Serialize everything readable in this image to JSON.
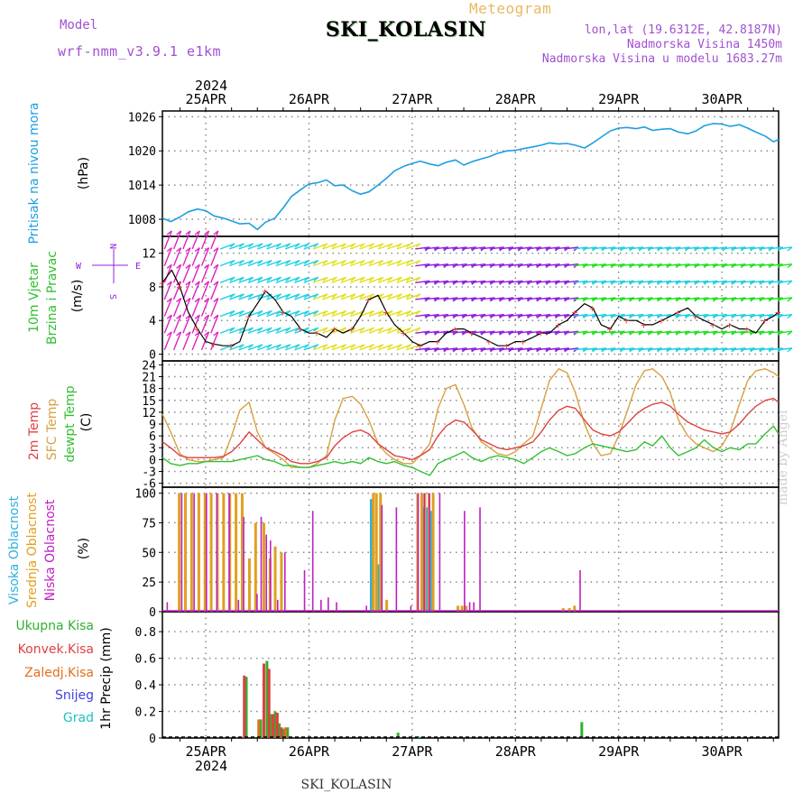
{
  "header": {
    "model_label": "Model",
    "model_value": "wrf-nmm_v3.9.1 e1km",
    "title": "SKI_KOLASIN",
    "meteogram_label": "Meteogram",
    "lonlat": "lon,lat (19.6312E, 42.8187N)",
    "elevation": "Nadmorska Visina 1450m",
    "model_elevation": "Nadmorska Visina u modelu 1683.27m"
  },
  "footer": {
    "title": "SKI_KOLASIN",
    "signature": "made by Angel"
  },
  "time_axis": {
    "labels": [
      "25APR",
      "26APR",
      "27APR",
      "28APR",
      "29APR",
      "30APR"
    ],
    "year": "2024"
  },
  "wind_compass": {
    "n": "N",
    "w": "W",
    "e": "E",
    "s": "S"
  },
  "colors": {
    "pressure": "#1ba0e0",
    "t2m": "#e04040",
    "sfc": "#d8a040",
    "dew": "#30c030",
    "high_cloud": "#30b0e0",
    "mid_cloud": "#e0a020",
    "low_cloud": "#c020c0",
    "total_precip": "#30b030",
    "conv_precip": "#e04040",
    "frz_precip": "#e07020",
    "snow": "#4040e0",
    "graupel": "#20c0c0",
    "wind_purple": "#9020e0",
    "wind_cyan": "#20d0e0",
    "wind_yellow": "#e0e020",
    "wind_green": "#20e020",
    "wind_magenta": "#e020c0",
    "axis": "#000000",
    "grid": "#888888"
  },
  "chart_data": [
    {
      "type": "line",
      "panel": "pressure",
      "ylabel": [
        "Pritisak na nivou mora",
        "(hPa)"
      ],
      "yticks": [
        1008,
        1014,
        1020,
        1026
      ],
      "ylim": [
        1005,
        1027
      ],
      "x_range_days": [
        24.58,
        30.55
      ],
      "grid": true,
      "series": [
        {
          "x": [
            24.58,
            24.66,
            24.75,
            24.83,
            24.92,
            25.0,
            25.08,
            25.17,
            25.25,
            25.33,
            25.42,
            25.5,
            25.58,
            25.67,
            25.75,
            25.83,
            25.92,
            26.0,
            26.08,
            26.17,
            26.25,
            26.33,
            26.42,
            26.5,
            26.58,
            26.67,
            26.75,
            26.83,
            26.92,
            27.0,
            27.08,
            27.17,
            27.25,
            27.33,
            27.42,
            27.5,
            27.58,
            27.67,
            27.75,
            27.83,
            27.92,
            28.0,
            28.08,
            28.17,
            28.25,
            28.33,
            28.42,
            28.5,
            28.58,
            28.67,
            28.75,
            28.83,
            28.92,
            29.0,
            29.08,
            29.17,
            29.25,
            29.33,
            29.42,
            29.5,
            29.58,
            29.67,
            29.75,
            29.83,
            29.92,
            30.0,
            30.08,
            30.17,
            30.25,
            30.33,
            30.42,
            30.5,
            30.55
          ],
          "values": [
            1008.2,
            1007.6,
            1008.4,
            1009.3,
            1009.8,
            1009.5,
            1008.6,
            1008.2,
            1007.7,
            1007.2,
            1007.3,
            1006.2,
            1007.5,
            1008.2,
            1010.0,
            1012.0,
            1013.2,
            1014.2,
            1014.4,
            1014.9,
            1013.9,
            1014.0,
            1013.0,
            1012.4,
            1012.8,
            1014.0,
            1015.2,
            1016.5,
            1017.3,
            1017.8,
            1018.2,
            1017.7,
            1017.4,
            1018.0,
            1018.4,
            1017.5,
            1018.1,
            1018.6,
            1019.0,
            1019.6,
            1020.0,
            1020.1,
            1020.4,
            1020.7,
            1021.0,
            1021.4,
            1021.2,
            1021.3,
            1021.0,
            1020.5,
            1021.4,
            1022.4,
            1023.5,
            1024.0,
            1024.1,
            1023.9,
            1024.2,
            1023.6,
            1023.8,
            1023.9,
            1023.3,
            1023.0,
            1023.5,
            1024.4,
            1024.8,
            1024.7,
            1024.3,
            1024.6,
            1024.0,
            1023.3,
            1022.6,
            1021.6,
            1022.0
          ],
          "name": "Pritisak na nivou mora"
        }
      ]
    },
    {
      "type": "line",
      "panel": "wind",
      "ylabel": [
        "10m Vjetar",
        "Brzina i Pravac",
        "(m/s)"
      ],
      "yticks": [
        0,
        4,
        8,
        12
      ],
      "ylim": [
        -0.8,
        14
      ],
      "grid": true,
      "series": [
        {
          "x": [
            24.58,
            24.67,
            24.75,
            24.83,
            24.92,
            25.0,
            25.08,
            25.17,
            25.25,
            25.33,
            25.42,
            25.5,
            25.58,
            25.67,
            25.75,
            25.83,
            25.92,
            26.0,
            26.08,
            26.17,
            26.25,
            26.33,
            26.42,
            26.5,
            26.58,
            26.67,
            26.75,
            26.83,
            26.92,
            27.0,
            27.08,
            27.17,
            27.25,
            27.33,
            27.42,
            27.5,
            27.58,
            27.67,
            27.75,
            27.83,
            27.92,
            28.0,
            28.08,
            28.17,
            28.25,
            28.33,
            28.42,
            28.5,
            28.58,
            28.67,
            28.75,
            28.83,
            28.92,
            29.0,
            29.08,
            29.17,
            29.25,
            29.33,
            29.42,
            29.5,
            29.58,
            29.67,
            29.75,
            29.83,
            29.92,
            30.0,
            30.08,
            30.17,
            30.25,
            30.33,
            30.42,
            30.5,
            30.55
          ],
          "values": [
            8.5,
            10.0,
            8.0,
            5.0,
            3.0,
            1.5,
            1.2,
            1.0,
            1.0,
            1.5,
            4.5,
            6.0,
            7.5,
            6.5,
            5.0,
            4.5,
            3.0,
            2.5,
            2.5,
            2.0,
            3.0,
            2.5,
            3.0,
            4.5,
            6.5,
            7.0,
            5.0,
            3.5,
            2.5,
            1.5,
            1.0,
            1.5,
            1.5,
            2.5,
            3.0,
            3.0,
            2.5,
            2.0,
            1.5,
            1.0,
            1.0,
            1.5,
            1.5,
            2.0,
            2.5,
            2.5,
            3.5,
            4.0,
            5.0,
            6.0,
            5.5,
            3.5,
            3.0,
            4.5,
            4.0,
            4.0,
            3.5,
            3.5,
            4.0,
            4.5,
            5.0,
            5.5,
            4.5,
            4.0,
            3.5,
            3.0,
            3.5,
            3.0,
            3.0,
            2.5,
            4.0,
            4.5,
            5.0
          ],
          "name": "10m Vjetar Brzina"
        }
      ]
    },
    {
      "type": "line",
      "panel": "temperature",
      "ylabel": [
        "2m Temp",
        "SFC Temp",
        "dewpt Temp",
        "(C)"
      ],
      "yticks": [
        -6,
        -3,
        0,
        3,
        6,
        9,
        12,
        15,
        18,
        21,
        24
      ],
      "ylim": [
        -7,
        25
      ],
      "grid": true,
      "x": [
        24.58,
        24.66,
        24.75,
        24.83,
        24.92,
        25.0,
        25.08,
        25.17,
        25.25,
        25.33,
        25.42,
        25.5,
        25.58,
        25.67,
        25.75,
        25.83,
        25.92,
        26.0,
        26.08,
        26.17,
        26.25,
        26.33,
        26.42,
        26.5,
        26.58,
        26.67,
        26.75,
        26.83,
        26.92,
        27.0,
        27.08,
        27.17,
        27.25,
        27.33,
        27.42,
        27.5,
        27.58,
        27.67,
        27.75,
        27.83,
        27.92,
        28.0,
        28.08,
        28.17,
        28.25,
        28.33,
        28.42,
        28.5,
        28.58,
        28.67,
        28.75,
        28.83,
        28.92,
        29.0,
        29.08,
        29.17,
        29.25,
        29.33,
        29.42,
        29.5,
        29.58,
        29.67,
        29.75,
        29.83,
        29.92,
        30.0,
        30.08,
        30.17,
        30.25,
        30.33,
        30.42,
        30.5,
        30.55
      ],
      "series": [
        {
          "name": "2m Temp",
          "values": [
            4.5,
            3.0,
            1.0,
            0.5,
            0.5,
            0.5,
            0.5,
            0.8,
            2.0,
            4.0,
            7.0,
            5.0,
            3.0,
            2.0,
            1.0,
            -0.5,
            -1.0,
            -1.0,
            -0.5,
            0.5,
            3.5,
            5.5,
            7.0,
            7.5,
            6.5,
            4.0,
            2.5,
            1.0,
            0.5,
            0.0,
            1.0,
            2.5,
            6.0,
            8.5,
            10.0,
            9.5,
            7.5,
            5.0,
            4.0,
            3.0,
            2.5,
            3.0,
            3.5,
            4.5,
            7.0,
            10.0,
            12.5,
            13.5,
            13.0,
            10.0,
            7.5,
            6.5,
            6.0,
            7.0,
            9.0,
            11.5,
            13.0,
            14.0,
            14.5,
            13.5,
            11.5,
            9.5,
            8.5,
            7.5,
            7.0,
            6.5,
            7.0,
            9.0,
            11.5,
            13.5,
            15.0,
            15.5,
            14.5
          ]
        },
        {
          "name": "SFC Temp",
          "values": [
            11.5,
            7.0,
            1.5,
            0.0,
            -0.5,
            -0.5,
            0.0,
            0.5,
            6.0,
            12.5,
            14.5,
            7.0,
            3.0,
            1.5,
            0.0,
            -2.0,
            -2.0,
            -2.0,
            -1.0,
            1.0,
            10.0,
            15.5,
            16.0,
            14.0,
            10.0,
            4.0,
            1.5,
            0.0,
            -1.0,
            -1.0,
            1.0,
            4.0,
            13.0,
            18.0,
            19.0,
            14.0,
            8.0,
            4.5,
            3.0,
            1.5,
            1.0,
            2.0,
            4.0,
            6.0,
            13.0,
            20.0,
            23.0,
            22.0,
            17.0,
            9.0,
            4.0,
            1.0,
            1.5,
            6.0,
            12.0,
            19.0,
            22.5,
            23.0,
            21.0,
            17.0,
            10.0,
            6.0,
            4.0,
            3.0,
            2.0,
            3.5,
            7.0,
            14.0,
            20.0,
            22.5,
            23.0,
            22.0,
            21.0
          ]
        },
        {
          "name": "dewpt Temp",
          "values": [
            0.5,
            -1.0,
            -1.5,
            -1.0,
            -1.0,
            -0.5,
            -0.5,
            -0.5,
            -0.5,
            0.0,
            0.5,
            1.0,
            0.0,
            -0.5,
            -1.5,
            -1.5,
            -2.0,
            -2.0,
            -1.5,
            -1.0,
            -0.5,
            -1.0,
            -0.5,
            -1.0,
            0.5,
            -0.5,
            -1.0,
            -0.5,
            -1.5,
            -2.0,
            -3.0,
            -4.0,
            -1.0,
            0.0,
            1.0,
            2.0,
            0.5,
            -0.5,
            0.5,
            1.0,
            0.5,
            0.0,
            -1.0,
            0.5,
            2.0,
            3.0,
            2.0,
            1.0,
            1.5,
            3.0,
            4.0,
            3.5,
            3.0,
            2.5,
            2.0,
            2.5,
            4.5,
            3.5,
            6.0,
            3.0,
            1.0,
            2.0,
            3.0,
            5.0,
            3.0,
            2.0,
            3.0,
            2.5,
            4.0,
            4.0,
            6.5,
            8.5,
            6.5
          ]
        }
      ]
    },
    {
      "type": "bar",
      "panel": "cloud",
      "ylabel": [
        "Visoka Oblacnost",
        "Srednja Oblacnost",
        "Niska Oblacnost",
        "(%)"
      ],
      "yticks": [
        0,
        25,
        50,
        75,
        100
      ],
      "ylim": [
        0,
        105
      ],
      "grid": true,
      "series": [
        {
          "name": "Visoka Oblacnost",
          "x": [
            26.59,
            26.66,
            27.08,
            27.13,
            27.17
          ],
          "values": [
            95,
            40,
            88,
            88,
            85
          ]
        },
        {
          "name": "Srednja Oblacnost",
          "x": [
            24.73,
            24.79,
            24.85,
            24.92,
            24.98,
            25.04,
            25.1,
            25.16,
            25.22,
            25.28,
            25.34,
            25.41,
            25.47,
            25.55,
            25.61,
            25.66,
            25.72,
            26.61,
            26.64,
            26.68,
            26.74,
            27.04,
            27.08,
            27.11,
            27.15,
            27.19,
            27.43,
            27.47,
            27.51,
            28.45,
            28.51,
            28.56
          ],
          "values": [
            100,
            100,
            100,
            100,
            100,
            100,
            100,
            100,
            100,
            100,
            100,
            45,
            75,
            75,
            45,
            55,
            50,
            100,
            100,
            100,
            10,
            100,
            100,
            100,
            100,
            100,
            5,
            5,
            5,
            3,
            3,
            5
          ]
        },
        {
          "name": "Niska Oblacnost",
          "x": [
            24.62,
            24.76,
            24.88,
            25.0,
            25.1,
            25.22,
            25.31,
            25.36,
            25.49,
            25.53,
            25.58,
            25.62,
            25.69,
            25.76,
            25.82,
            25.95,
            26.03,
            26.11,
            26.18,
            26.26,
            26.55,
            26.7,
            26.84,
            26.92,
            26.98,
            27.05,
            27.11,
            27.16,
            27.22,
            27.26,
            27.5,
            27.55,
            27.59,
            27.65,
            28.62
          ],
          "values": [
            8,
            100,
            100,
            100,
            100,
            100,
            10,
            80,
            15,
            80,
            65,
            60,
            10,
            50,
            0,
            35,
            85,
            10,
            12,
            8,
            5,
            90,
            88,
            0,
            5,
            100,
            100,
            100,
            0,
            100,
            85,
            8,
            8,
            88,
            35
          ]
        }
      ]
    },
    {
      "type": "bar",
      "panel": "precip",
      "ylabel": [
        "1hr Precip (mm)"
      ],
      "legend": [
        "Ukupna Kisa",
        "Konvek.Kisa",
        "Zaledj.Kisa",
        "Snijeg",
        "Grad"
      ],
      "yticks": [
        0,
        0.2,
        0.4,
        0.6,
        0.8
      ],
      "ylim": [
        0,
        0.95
      ],
      "grid": true,
      "series": [
        {
          "name": "Ukupna Kisa",
          "x": [
            24.78,
            25.38,
            25.52,
            25.58,
            25.62,
            25.66,
            25.7,
            25.74,
            25.78,
            26.85,
            28.63
          ],
          "values": [
            0.01,
            0.46,
            0.14,
            0.58,
            0.18,
            0.2,
            0.11,
            0.07,
            0.08,
            0.04,
            0.12
          ]
        },
        {
          "name": "Konvek.Kisa",
          "x": [
            25.36,
            25.55,
            25.6,
            25.64,
            25.68,
            25.72
          ],
          "values": [
            0.47,
            0.56,
            0.52,
            0.18,
            0.19,
            0.08
          ]
        },
        {
          "name": "Zaledj.Kisa",
          "x": [
            25.5,
            25.76
          ],
          "values": [
            0.14,
            0.08
          ]
        },
        {
          "name": "Grad",
          "x": [
            27.05
          ],
          "values": [
            0.01
          ]
        }
      ]
    }
  ]
}
